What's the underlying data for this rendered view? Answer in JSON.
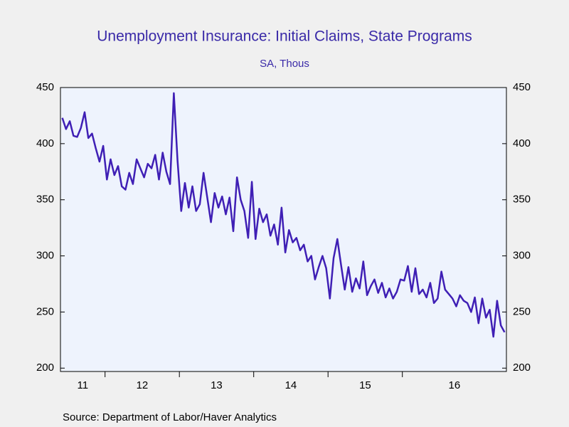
{
  "chart_data": {
    "type": "line",
    "title": "Unemployment Insurance: Initial Claims, State Programs",
    "subtitle": "SA, Thous",
    "source": "Source:  Department of Labor/Haver Analytics",
    "categories": [
      "11",
      null,
      null,
      null,
      null,
      null,
      null,
      null,
      null,
      null,
      null,
      null,
      "12",
      null,
      null,
      null,
      null,
      null,
      null,
      null,
      null,
      null,
      null,
      null,
      null,
      null,
      null,
      null,
      null,
      null,
      null,
      null,
      "13",
      null,
      null,
      null,
      null,
      null,
      null,
      null,
      null,
      null,
      null,
      null,
      null,
      null,
      null,
      null,
      null,
      null,
      null,
      null,
      "14",
      null,
      null,
      null,
      null,
      null,
      null,
      null,
      null,
      null,
      null,
      null,
      null,
      null,
      null,
      null,
      null,
      null,
      null,
      null,
      "15",
      null,
      null,
      null,
      null,
      null,
      null,
      null,
      null,
      null,
      null,
      null,
      null,
      null,
      null,
      null,
      null,
      null,
      null,
      null,
      "16",
      null,
      null,
      null,
      null,
      null,
      null,
      null,
      null,
      null,
      null,
      null,
      null,
      null,
      null,
      null,
      null,
      null,
      null,
      null,
      null,
      null,
      null,
      null,
      null,
      null,
      null,
      null
    ],
    "series": [
      {
        "color": "#3f1fb5",
        "values": [
          423,
          413,
          420,
          407,
          406,
          414,
          428,
          405,
          409,
          396,
          384,
          398,
          368,
          386,
          372,
          380,
          362,
          359,
          374,
          364,
          386,
          378,
          370,
          382,
          378,
          390,
          368,
          392,
          375,
          364,
          445,
          385,
          340,
          365,
          343,
          362,
          340,
          346,
          374,
          352,
          330,
          356,
          343,
          353,
          337,
          352,
          322,
          370,
          350,
          340,
          316,
          366,
          315,
          342,
          330,
          337,
          318,
          328,
          310,
          343,
          303,
          323,
          312,
          316,
          305,
          310,
          295,
          300,
          279,
          290,
          300,
          289,
          262,
          298,
          315,
          292,
          270,
          290,
          268,
          280,
          271,
          295,
          265,
          273,
          279,
          267,
          276,
          263,
          271,
          262,
          268,
          279,
          278,
          291,
          268,
          289,
          266,
          270,
          263,
          276,
          258,
          262,
          286,
          270,
          266,
          262,
          255,
          265,
          260,
          258,
          250,
          263,
          240,
          262,
          245,
          252,
          228,
          260,
          238,
          232
        ]
      }
    ],
    "ylim": [
      197,
      450
    ],
    "yticks": [
      200,
      250,
      300,
      350,
      400,
      450
    ]
  }
}
